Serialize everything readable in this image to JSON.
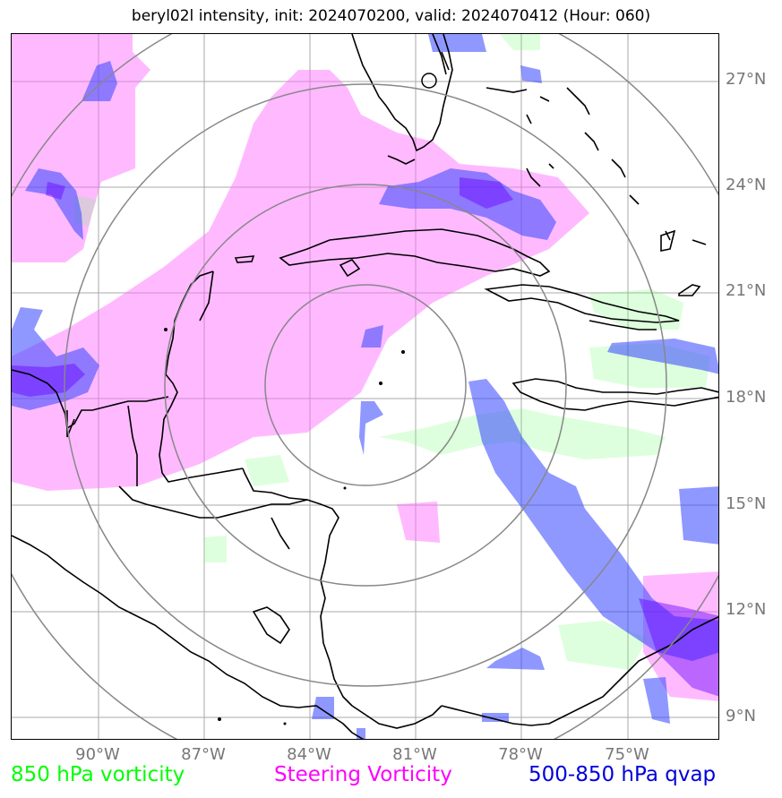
{
  "title": "beryl02l intensity, init: 2024070200, valid: 2024070412 (Hour: 060)",
  "lat_labels": [
    "27°N",
    "24°N",
    "21°N",
    "18°N",
    "15°N",
    "12°N",
    "9°N"
  ],
  "lon_labels": [
    "90°W",
    "87°W",
    "84°W",
    "81°W",
    "78°W",
    "75°W"
  ],
  "legend": {
    "vorticity_850": "850 hPa vorticity",
    "steering": "Steering Vorticity",
    "qvap": "500-850 hPa qvap"
  },
  "colors": {
    "vorticity_850": "#00ff00",
    "steering": "#ff00ff",
    "qvap": "#0000dd",
    "range_rings": "#888888",
    "gridlines": "#aaaaaa"
  },
  "range_rings_count": 4
}
